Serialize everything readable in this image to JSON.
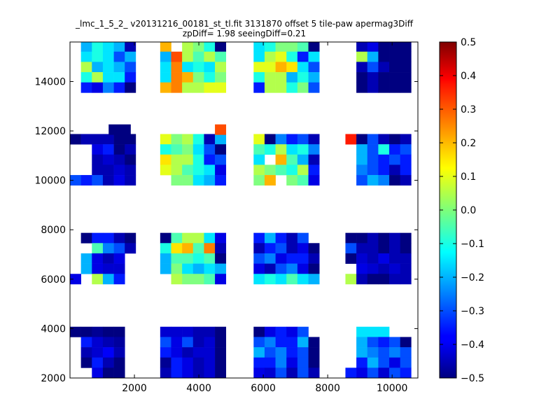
{
  "chart_data": {
    "type": "heatmap",
    "title_line1": "_lmc_1_5_2_ v20131216_00181_st_tl.fit 3131870 offset 5 tile-paw apermag3Diff",
    "title_line2": "zpDiff= 1.98 seeingDiff=0.21",
    "xlabel": "",
    "ylabel": "",
    "xlim": [
      0,
      10800
    ],
    "ylim": [
      2000,
      15600
    ],
    "xticks": [
      2000,
      4000,
      6000,
      8000,
      10000
    ],
    "yticks": [
      2000,
      4000,
      6000,
      8000,
      10000,
      12000,
      14000
    ],
    "colorbar": {
      "colormap": "jet",
      "vmin": -0.5,
      "vmax": 0.5,
      "ticks": [
        0.5,
        0.4,
        0.3,
        0.2,
        0.1,
        0.0,
        -0.1,
        -0.2,
        -0.3,
        -0.4,
        -0.5
      ],
      "tick_labels": [
        "0.5",
        "0.4",
        "0.3",
        "0.2",
        "0.1",
        "0.0",
        "−0.1",
        "−0.2",
        "−0.3",
        "−0.4",
        "−0.5"
      ]
    },
    "cell_size": [
      340,
      415
    ],
    "detectors": [
      {
        "x0": 0,
        "y0": 2000,
        "cols": 6,
        "rows": 5,
        "values": [
          [
            -0.5,
            -0.5,
            -0.48,
            -0.5,
            -0.5,
            null
          ],
          [
            null,
            -0.35,
            -0.42,
            -0.45,
            -0.47,
            null
          ],
          [
            null,
            -0.45,
            -0.42,
            -0.38,
            -0.45,
            null
          ],
          [
            null,
            -0.5,
            -0.35,
            -0.45,
            -0.5,
            null
          ],
          [
            null,
            null,
            -0.4,
            -0.5,
            -0.5,
            null
          ]
        ]
      },
      {
        "x0": 2800,
        "y0": 2000,
        "cols": 6,
        "rows": 5,
        "values": [
          [
            -0.42,
            -0.42,
            -0.42,
            -0.45,
            -0.45,
            -0.5
          ],
          [
            -0.3,
            -0.4,
            -0.3,
            -0.45,
            -0.42,
            -0.5
          ],
          [
            -0.35,
            -0.4,
            -0.45,
            -0.42,
            -0.42,
            -0.5
          ],
          [
            -0.48,
            -0.35,
            -0.4,
            -0.45,
            -0.42,
            -0.5
          ],
          [
            -0.45,
            -0.35,
            -0.4,
            -0.45,
            -0.42,
            -0.5
          ]
        ]
      },
      {
        "x0": 5700,
        "y0": 2000,
        "cols": 6,
        "rows": 5,
        "values": [
          [
            -0.5,
            -0.4,
            -0.35,
            -0.4,
            -0.3,
            null
          ],
          [
            -0.3,
            -0.25,
            -0.35,
            -0.35,
            -0.2,
            -0.5
          ],
          [
            -0.2,
            -0.3,
            -0.25,
            -0.35,
            -0.3,
            -0.5
          ],
          [
            -0.35,
            -0.35,
            -0.25,
            -0.4,
            -0.3,
            -0.5
          ],
          [
            -0.4,
            -0.42,
            -0.3,
            -0.45,
            -0.3,
            -0.45
          ]
        ]
      },
      {
        "x0": 8550,
        "y0": 2000,
        "cols": 6,
        "rows": 5,
        "values": [
          [
            null,
            -0.15,
            -0.15,
            -0.15,
            null,
            null
          ],
          [
            null,
            -0.2,
            -0.3,
            -0.35,
            -0.3,
            -0.5
          ],
          [
            null,
            -0.2,
            -0.25,
            -0.3,
            -0.25,
            -0.3
          ],
          [
            null,
            -0.35,
            -0.2,
            -0.3,
            -0.4,
            -0.3
          ],
          [
            -0.35,
            -0.4,
            -0.3,
            -0.42,
            -0.3,
            -0.35
          ]
        ]
      },
      {
        "x0": 0,
        "y0": 5800,
        "cols": 6,
        "rows": 5,
        "values": [
          [
            null,
            -0.5,
            -0.35,
            -0.35,
            -0.45,
            -0.5
          ],
          [
            null,
            null,
            -0.05,
            -0.25,
            -0.3,
            -0.45
          ],
          [
            null,
            -0.2,
            -0.4,
            -0.45,
            -0.4,
            null
          ],
          [
            null,
            -0.2,
            -0.4,
            -0.42,
            -0.42,
            null
          ],
          [
            -0.4,
            null,
            0.05,
            -0.2,
            -0.35,
            null
          ]
        ]
      },
      {
        "x0": 2800,
        "y0": 5800,
        "cols": 6,
        "rows": 5,
        "values": [
          [
            -0.5,
            -0.05,
            0.05,
            0.05,
            -0.15,
            -0.4
          ],
          [
            -0.1,
            0.15,
            0.2,
            -0.05,
            0.25,
            -0.45
          ],
          [
            -0.2,
            -0.05,
            -0.05,
            -0.1,
            -0.05,
            -0.5
          ],
          [
            -0.2,
            0.0,
            -0.15,
            -0.2,
            -0.15,
            -0.2
          ],
          [
            null,
            0.05,
            0.0,
            0.0,
            -0.05,
            -0.4
          ]
        ]
      },
      {
        "x0": 5700,
        "y0": 5800,
        "cols": 6,
        "rows": 5,
        "values": [
          [
            -0.35,
            -0.2,
            -0.35,
            -0.45,
            -0.3,
            null
          ],
          [
            -0.45,
            -0.35,
            -0.3,
            -0.45,
            -0.4,
            -0.5
          ],
          [
            -0.3,
            -0.25,
            -0.4,
            -0.35,
            -0.35,
            -0.45
          ],
          [
            -0.4,
            -0.45,
            -0.3,
            -0.25,
            -0.4,
            -0.5
          ],
          [
            -0.15,
            -0.1,
            -0.15,
            -0.05,
            -0.15,
            -0.2
          ]
        ]
      },
      {
        "x0": 8550,
        "y0": 5800,
        "cols": 6,
        "rows": 5,
        "values": [
          [
            -0.5,
            -0.5,
            -0.45,
            -0.5,
            -0.45,
            -0.5
          ],
          [
            -0.3,
            -0.45,
            -0.45,
            -0.5,
            -0.45,
            -0.5
          ],
          [
            -0.5,
            -0.42,
            -0.45,
            -0.4,
            -0.45,
            -0.45
          ],
          [
            null,
            -0.4,
            -0.42,
            -0.45,
            -0.42,
            -0.45
          ],
          [
            0.05,
            -0.45,
            -0.5,
            -0.5,
            -0.45,
            -0.45
          ]
        ]
      },
      {
        "x0": 0,
        "y0": 9800,
        "cols": 6,
        "rows": 5,
        "values": [
          [
            -0.5,
            -0.45,
            -0.45,
            -0.45,
            -0.5,
            -0.5
          ],
          [
            null,
            null,
            -0.4,
            -0.35,
            -0.5,
            -0.45
          ],
          [
            null,
            null,
            -0.45,
            -0.42,
            -0.45,
            -0.5
          ],
          [
            null,
            null,
            -0.45,
            -0.45,
            -0.42,
            -0.45
          ],
          [
            -0.3,
            -0.35,
            -0.3,
            -0.45,
            -0.4,
            -0.45
          ]
        ]
      },
      {
        "x0": 2800,
        "y0": 9800,
        "cols": 6,
        "rows": 5,
        "values": [
          [
            0.1,
            0.0,
            0.05,
            -0.1,
            -0.45,
            -0.2
          ],
          [
            -0.1,
            -0.05,
            0.0,
            -0.15,
            -0.3,
            -0.5
          ],
          [
            0.15,
            0.05,
            0.05,
            -0.1,
            -0.35,
            -0.3
          ],
          [
            0.1,
            0.05,
            -0.05,
            -0.1,
            -0.15,
            -0.4
          ],
          [
            null,
            0.0,
            0.0,
            -0.15,
            -0.2,
            -0.35
          ]
        ]
      },
      {
        "x0": 5700,
        "y0": 9800,
        "cols": 6,
        "rows": 5,
        "values": [
          [
            0.1,
            -0.5,
            -0.25,
            -0.35,
            -0.3,
            -0.45
          ],
          [
            -0.05,
            -0.1,
            0.05,
            -0.15,
            -0.1,
            -0.25
          ],
          [
            -0.15,
            null,
            0.2,
            -0.05,
            -0.2,
            -0.45
          ],
          [
            0.05,
            0.0,
            -0.05,
            -0.1,
            0.05,
            -0.35
          ],
          [
            0.0,
            0.2,
            null,
            0.0,
            -0.05,
            -0.4
          ]
        ]
      },
      {
        "x0": 8550,
        "y0": 9800,
        "cols": 6,
        "rows": 5,
        "values": [
          [
            0.35,
            -0.5,
            -0.3,
            -0.45,
            -0.5,
            -0.45
          ],
          [
            null,
            -0.2,
            -0.3,
            -0.1,
            -0.35,
            -0.3
          ],
          [
            null,
            -0.2,
            -0.3,
            -0.35,
            -0.3,
            -0.35
          ],
          [
            null,
            -0.25,
            -0.3,
            -0.35,
            -0.45,
            -0.35
          ],
          [
            null,
            -0.3,
            -0.2,
            -0.25,
            -0.5,
            -0.45
          ]
        ]
      },
      {
        "x0": 0,
        "y0": 13550,
        "cols": 6,
        "rows": 5,
        "values": [
          [
            null,
            -0.2,
            -0.1,
            -0.15,
            -0.2,
            -0.45
          ],
          [
            null,
            -0.15,
            -0.1,
            -0.15,
            -0.3,
            -0.2
          ],
          [
            null,
            0.05,
            -0.2,
            -0.15,
            -0.2,
            -0.3
          ],
          [
            null,
            -0.1,
            0.05,
            -0.15,
            -0.15,
            -0.35
          ],
          [
            null,
            -0.35,
            -0.4,
            -0.25,
            -0.35,
            -0.5
          ]
        ]
      },
      {
        "x0": 2800,
        "y0": 13550,
        "cols": 6,
        "rows": 5,
        "values": [
          [
            0.2,
            null,
            0.05,
            0.0,
            -0.1,
            -0.5
          ],
          [
            -0.2,
            0.3,
            0.05,
            -0.05,
            0.05,
            -0.05
          ],
          [
            -0.15,
            0.25,
            -0.15,
            -0.1,
            -0.15,
            0.05
          ],
          [
            -0.15,
            0.25,
            0.2,
            0.0,
            -0.1,
            0.0
          ],
          [
            0.2,
            0.25,
            0.05,
            0.05,
            0.1,
            0.1
          ]
        ]
      },
      {
        "x0": 5700,
        "y0": 13550,
        "cols": 6,
        "rows": 5,
        "values": [
          [
            -0.15,
            -0.1,
            0.0,
            0.0,
            -0.05,
            -0.5
          ],
          [
            -0.15,
            0.05,
            0.1,
            -0.1,
            -0.35,
            -0.15
          ],
          [
            0.1,
            0.1,
            0.2,
            0.15,
            -0.15,
            -0.3
          ],
          [
            -0.1,
            0.05,
            0.05,
            -0.2,
            -0.1,
            -0.2
          ],
          [
            -0.35,
            0.05,
            0.05,
            -0.1,
            0.0,
            -0.3
          ]
        ]
      },
      {
        "x0": 8550,
        "y0": 13550,
        "cols": 6,
        "rows": 5,
        "values": [
          [
            null,
            -0.45,
            -0.4,
            -0.5,
            -0.5,
            -0.5
          ],
          [
            null,
            0.05,
            -0.2,
            -0.5,
            -0.5,
            -0.5
          ],
          [
            null,
            -0.45,
            -0.3,
            -0.45,
            -0.5,
            -0.5
          ],
          [
            null,
            -0.5,
            -0.45,
            -0.5,
            -0.5,
            -0.5
          ],
          [
            null,
            -0.5,
            -0.45,
            -0.5,
            -0.5,
            -0.5
          ]
        ]
      },
      {
        "x0": 4500,
        "y0": 11850,
        "cols": 1,
        "rows": 1,
        "values": [
          [
            0.3
          ]
        ]
      },
      {
        "x0": 1200,
        "y0": 11850,
        "cols": 2,
        "rows": 1,
        "values": [
          [
            -0.5,
            -0.5
          ]
        ]
      }
    ]
  }
}
